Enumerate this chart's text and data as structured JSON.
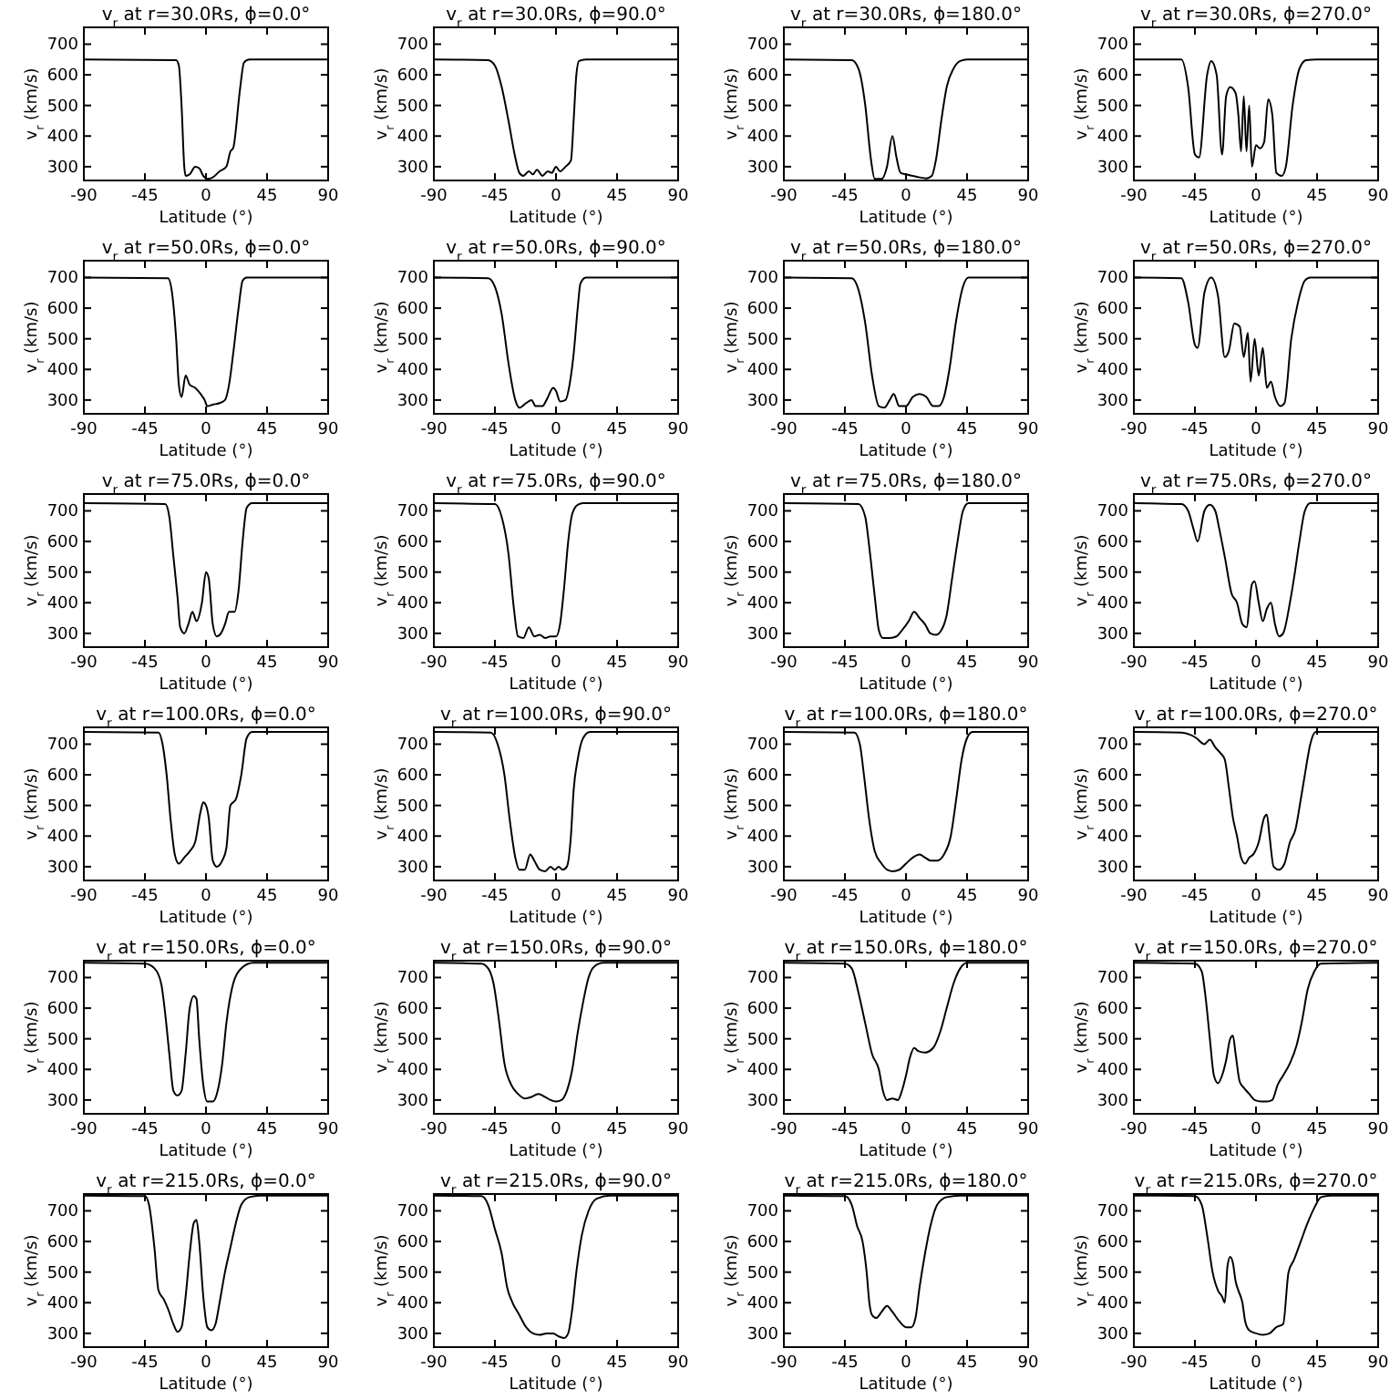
{
  "chart_data": [
    {
      "type": "line",
      "title": "v$_{r}$ at r=30.0Rs, ϕ=0.0°",
      "xlabel": "Latitude (°)",
      "ylabel": "v$_{r}$ (km/s)",
      "color": "#000000",
      "xlim": [
        -90,
        90
      ],
      "xticks": [
        -90,
        -45,
        0,
        45,
        90
      ],
      "ylim": [
        255,
        755
      ],
      "yticks": [
        300,
        400,
        500,
        600,
        700
      ],
      "x": [
        -90,
        -22,
        -20,
        -18,
        -16,
        -15,
        -12,
        -8,
        -5,
        -2,
        1,
        5,
        10,
        15,
        18,
        20,
        25,
        28,
        32,
        90
      ],
      "values": [
        650,
        648,
        630,
        500,
        300,
        270,
        275,
        300,
        295,
        270,
        260,
        265,
        285,
        300,
        350,
        360,
        550,
        640,
        650,
        650
      ]
    },
    {
      "type": "line",
      "title": "v$_{r}$ at r=30.0Rs, ϕ=90.0°",
      "xlabel": "Latitude (°)",
      "ylabel": "v$_{r}$ (km/s)",
      "color": "#000000",
      "xlim": [
        -90,
        90
      ],
      "xticks": [
        -90,
        -45,
        0,
        45,
        90
      ],
      "ylim": [
        255,
        755
      ],
      "yticks": [
        300,
        400,
        500,
        600,
        700
      ],
      "x": [
        -90,
        -50,
        -45,
        -40,
        -35,
        -30,
        -27,
        -24,
        -20,
        -17,
        -14,
        -10,
        -6,
        -3,
        0,
        3,
        7,
        11,
        13,
        15,
        17,
        22,
        90
      ],
      "values": [
        650,
        648,
        630,
        560,
        450,
        330,
        280,
        270,
        285,
        275,
        290,
        270,
        285,
        280,
        300,
        285,
        300,
        320,
        450,
        600,
        645,
        650,
        650
      ]
    },
    {
      "type": "line",
      "title": "v$_{r}$ at r=30.0Rs, ϕ=180.0°",
      "xlabel": "Latitude (°)",
      "ylabel": "v$_{r}$ (km/s)",
      "color": "#000000",
      "xlim": [
        -90,
        90
      ],
      "xticks": [
        -90,
        -45,
        0,
        45,
        90
      ],
      "ylim": [
        255,
        755
      ],
      "yticks": [
        300,
        400,
        500,
        600,
        700
      ],
      "x": [
        -90,
        -40,
        -35,
        -30,
        -26,
        -23,
        -18,
        -14,
        -10,
        -7,
        -4,
        0,
        5,
        10,
        15,
        19,
        22,
        26,
        30,
        35,
        40,
        45,
        90
      ],
      "values": [
        650,
        648,
        620,
        500,
        330,
        260,
        260,
        300,
        400,
        330,
        280,
        275,
        270,
        265,
        262,
        270,
        320,
        450,
        560,
        620,
        645,
        650,
        650
      ]
    },
    {
      "type": "line",
      "title": "v$_{r}$ at r=30.0Rs, ϕ=270.0°",
      "xlabel": "Latitude (°)",
      "ylabel": "v$_{r}$ (km/s)",
      "color": "#000000",
      "xlim": [
        -90,
        90
      ],
      "xticks": [
        -90,
        -45,
        0,
        45,
        90
      ],
      "ylim": [
        255,
        755
      ],
      "yticks": [
        300,
        400,
        500,
        600,
        700
      ],
      "x": [
        -90,
        -55,
        -50,
        -45,
        -42,
        -36,
        -33,
        -29,
        -25,
        -22,
        -19,
        -15,
        -13,
        -11,
        -9,
        -7,
        -5,
        -3,
        0,
        3,
        6,
        9,
        12,
        15,
        19,
        22,
        27,
        32,
        37,
        45,
        90
      ],
      "values": [
        650,
        650,
        560,
        340,
        330,
        600,
        645,
        600,
        340,
        530,
        560,
        540,
        470,
        350,
        530,
        350,
        500,
        300,
        370,
        360,
        380,
        520,
        470,
        280,
        270,
        300,
        500,
        620,
        648,
        650,
        650
      ]
    },
    {
      "type": "line",
      "title": "v$_{r}$ at r=50.0Rs, ϕ=0.0°",
      "xlabel": "Latitude (°)",
      "ylabel": "v$_{r}$ (km/s)",
      "color": "#000000",
      "xlim": [
        -90,
        90
      ],
      "xticks": [
        -90,
        -45,
        0,
        45,
        90
      ],
      "ylim": [
        255,
        755
      ],
      "yticks": [
        300,
        400,
        500,
        600,
        700
      ],
      "x": [
        -90,
        -28,
        -25,
        -22,
        -20,
        -18,
        -15,
        -12,
        -8,
        -4,
        -1,
        1,
        5,
        10,
        14,
        17,
        20,
        24,
        27,
        30,
        90
      ],
      "values": [
        700,
        698,
        650,
        500,
        350,
        310,
        380,
        350,
        340,
        320,
        300,
        280,
        285,
        290,
        300,
        350,
        450,
        600,
        690,
        700,
        700
      ]
    },
    {
      "type": "line",
      "title": "v$_{r}$ at r=50.0Rs, ϕ=90.0°",
      "xlabel": "Latitude (°)",
      "ylabel": "v$_{r}$ (km/s)",
      "color": "#000000",
      "xlim": [
        -90,
        90
      ],
      "xticks": [
        -90,
        -45,
        0,
        45,
        90
      ],
      "ylim": [
        255,
        755
      ],
      "yticks": [
        300,
        400,
        500,
        600,
        700
      ],
      "x": [
        -90,
        -50,
        -45,
        -40,
        -35,
        -30,
        -27,
        -22,
        -18,
        -15,
        -10,
        -7,
        -2,
        0,
        3,
        7,
        10,
        13,
        16,
        18,
        22,
        90
      ],
      "values": [
        700,
        698,
        670,
        580,
        420,
        300,
        275,
        290,
        300,
        280,
        280,
        300,
        340,
        330,
        295,
        300,
        350,
        450,
        600,
        680,
        700,
        700
      ]
    },
    {
      "type": "line",
      "title": "v$_{r}$ at r=50.0Rs, ϕ=180.0°",
      "xlabel": "Latitude (°)",
      "ylabel": "v$_{r}$ (km/s)",
      "color": "#000000",
      "xlim": [
        -90,
        90
      ],
      "xticks": [
        -90,
        -45,
        0,
        45,
        90
      ],
      "ylim": [
        255,
        755
      ],
      "yticks": [
        300,
        400,
        500,
        600,
        700
      ],
      "x": [
        -90,
        -40,
        -35,
        -30,
        -25,
        -20,
        -16,
        -12,
        -9,
        -5,
        0,
        5,
        10,
        15,
        20,
        24,
        28,
        32,
        37,
        42,
        46,
        90
      ],
      "values": [
        700,
        698,
        660,
        550,
        380,
        280,
        275,
        300,
        320,
        280,
        280,
        310,
        320,
        310,
        280,
        280,
        310,
        400,
        560,
        670,
        700,
        700
      ]
    },
    {
      "type": "line",
      "title": "v$_{r}$ at r=50.0Rs, ϕ=270.0°",
      "xlabel": "Latitude (°)",
      "ylabel": "v$_{r}$ (km/s)",
      "color": "#000000",
      "xlim": [
        -90,
        90
      ],
      "xticks": [
        -90,
        -45,
        0,
        45,
        90
      ],
      "ylim": [
        255,
        755
      ],
      "yticks": [
        300,
        400,
        500,
        600,
        700
      ],
      "x": [
        -90,
        -55,
        -50,
        -45,
        -43,
        -38,
        -33,
        -28,
        -23,
        -20,
        -16,
        -12,
        -9,
        -6,
        -4,
        -1,
        2,
        5,
        8,
        11,
        14,
        18,
        21,
        26,
        31,
        36,
        40,
        90
      ],
      "values": [
        700,
        698,
        620,
        480,
        470,
        650,
        700,
        640,
        440,
        460,
        550,
        540,
        440,
        520,
        360,
        500,
        380,
        470,
        340,
        360,
        310,
        280,
        290,
        500,
        620,
        690,
        700,
        700
      ]
    },
    {
      "type": "line",
      "title": "v$_{r}$ at r=75.0Rs, ϕ=0.0°",
      "xlabel": "Latitude (°)",
      "ylabel": "v$_{r}$ (km/s)",
      "color": "#000000",
      "xlim": [
        -90,
        90
      ],
      "xticks": [
        -90,
        -45,
        0,
        45,
        90
      ],
      "ylim": [
        255,
        755
      ],
      "yticks": [
        300,
        400,
        500,
        600,
        700
      ],
      "x": [
        -90,
        -30,
        -27,
        -24,
        -21,
        -19,
        -16,
        -13,
        -10,
        -7,
        -3,
        0,
        2,
        5,
        8,
        11,
        14,
        17,
        21,
        24,
        27,
        30,
        34,
        90
      ],
      "values": [
        725,
        722,
        680,
        550,
        420,
        320,
        300,
        330,
        370,
        340,
        400,
        500,
        480,
        330,
        290,
        300,
        330,
        370,
        370,
        440,
        600,
        710,
        725,
        725
      ]
    },
    {
      "type": "line",
      "title": "v$_{r}$ at r=75.0Rs, ϕ=90.0°",
      "xlabel": "Latitude (°)",
      "ylabel": "v$_{r}$ (km/s)",
      "color": "#000000",
      "xlim": [
        -90,
        90
      ],
      "xticks": [
        -90,
        -45,
        0,
        45,
        90
      ],
      "ylim": [
        255,
        755
      ],
      "yticks": [
        300,
        400,
        500,
        600,
        700
      ],
      "x": [
        -90,
        -45,
        -40,
        -35,
        -31,
        -28,
        -24,
        -20,
        -16,
        -12,
        -8,
        -4,
        0,
        3,
        6,
        9,
        12,
        16,
        20,
        90
      ],
      "values": [
        725,
        722,
        680,
        560,
        380,
        290,
        285,
        320,
        290,
        295,
        285,
        290,
        290,
        330,
        450,
        600,
        690,
        720,
        725,
        725
      ]
    },
    {
      "type": "line",
      "title": "v$_{r}$ at r=75.0Rs, ϕ=180.0°",
      "xlabel": "Latitude (°)",
      "ylabel": "v$_{r}$ (km/s)",
      "color": "#000000",
      "xlim": [
        -90,
        90
      ],
      "xticks": [
        -90,
        -45,
        0,
        45,
        90
      ],
      "ylim": [
        255,
        755
      ],
      "yticks": [
        300,
        400,
        500,
        600,
        700
      ],
      "x": [
        -90,
        -35,
        -30,
        -27,
        -23,
        -20,
        -17,
        -12,
        -7,
        -3,
        2,
        6,
        10,
        14,
        18,
        22,
        26,
        30,
        34,
        38,
        42,
        46,
        90
      ],
      "values": [
        725,
        722,
        680,
        580,
        420,
        310,
        285,
        285,
        290,
        310,
        340,
        370,
        350,
        330,
        300,
        295,
        310,
        360,
        480,
        600,
        700,
        725,
        725
      ]
    },
    {
      "type": "line",
      "title": "v$_{r}$ at r=75.0Rs, ϕ=270.0°",
      "xlabel": "Latitude (°)",
      "ylabel": "v$_{r}$ (km/s)",
      "color": "#000000",
      "xlim": [
        -90,
        90
      ],
      "xticks": [
        -90,
        -45,
        0,
        45,
        90
      ],
      "ylim": [
        255,
        755
      ],
      "yticks": [
        300,
        400,
        500,
        600,
        700
      ],
      "x": [
        -90,
        -55,
        -50,
        -46,
        -43,
        -38,
        -34,
        -30,
        -27,
        -23,
        -18,
        -14,
        -10,
        -7,
        -3,
        -1,
        2,
        5,
        8,
        11,
        14,
        17,
        20,
        25,
        28,
        32,
        36,
        40,
        90
      ],
      "values": [
        725,
        722,
        700,
        640,
        600,
        700,
        720,
        700,
        640,
        550,
        430,
        400,
        330,
        320,
        460,
        470,
        400,
        340,
        380,
        400,
        330,
        290,
        300,
        400,
        480,
        600,
        700,
        725,
        725
      ]
    },
    {
      "type": "line",
      "title": "v$_{r}$ at r=100.0Rs, ϕ=0.0°",
      "xlabel": "Latitude (°)",
      "ylabel": "v$_{r}$ (km/s)",
      "color": "#000000",
      "xlim": [
        -90,
        90
      ],
      "xticks": [
        -90,
        -45,
        0,
        45,
        90
      ],
      "ylim": [
        255,
        755
      ],
      "yticks": [
        300,
        400,
        500,
        600,
        700
      ],
      "x": [
        -90,
        -35,
        -32,
        -29,
        -26,
        -23,
        -20,
        -16,
        -12,
        -8,
        -4,
        -2,
        0,
        2,
        5,
        8,
        12,
        15,
        18,
        22,
        26,
        30,
        34,
        90
      ],
      "values": [
        740,
        738,
        700,
        600,
        450,
        340,
        310,
        330,
        350,
        380,
        480,
        510,
        500,
        460,
        320,
        300,
        320,
        360,
        500,
        520,
        600,
        720,
        740,
        740
      ]
    },
    {
      "type": "line",
      "title": "v$_{r}$ at r=100.0Rs, ϕ=90.0°",
      "xlabel": "Latitude (°)",
      "ylabel": "v$_{r}$ (km/s)",
      "color": "#000000",
      "xlim": [
        -90,
        90
      ],
      "xticks": [
        -90,
        -45,
        0,
        45,
        90
      ],
      "ylim": [
        255,
        755
      ],
      "yticks": [
        300,
        400,
        500,
        600,
        700
      ],
      "x": [
        -90,
        -48,
        -43,
        -38,
        -34,
        -30,
        -27,
        -23,
        -19,
        -16,
        -12,
        -8,
        -4,
        -1,
        2,
        5,
        8,
        11,
        13,
        16,
        20,
        25,
        90
      ],
      "values": [
        740,
        738,
        700,
        600,
        450,
        330,
        290,
        290,
        340,
        320,
        290,
        285,
        300,
        290,
        300,
        290,
        300,
        400,
        550,
        650,
        720,
        740,
        740
      ]
    },
    {
      "type": "line",
      "title": "v$_{r}$ at r=100.0Rs, ϕ=180.0°",
      "xlabel": "Latitude (°)",
      "ylabel": "v$_{r}$ (km/s)",
      "color": "#000000",
      "xlim": [
        -90,
        90
      ],
      "xticks": [
        -90,
        -45,
        0,
        45,
        90
      ],
      "ylim": [
        255,
        755
      ],
      "yticks": [
        300,
        400,
        500,
        600,
        700
      ],
      "x": [
        -90,
        -38,
        -34,
        -31,
        -27,
        -23,
        -18,
        -14,
        -10,
        -5,
        0,
        5,
        10,
        14,
        18,
        23,
        28,
        33,
        37,
        41,
        45,
        49,
        90
      ],
      "values": [
        740,
        738,
        700,
        600,
        450,
        350,
        310,
        290,
        285,
        290,
        310,
        330,
        340,
        330,
        320,
        320,
        340,
        400,
        520,
        650,
        720,
        740,
        740
      ]
    },
    {
      "type": "line",
      "title": "v$_{r}$ at r=100.0Rs, ϕ=270.0°",
      "xlabel": "Latitude (°)",
      "ylabel": "v$_{r}$ (km/s)",
      "color": "#000000",
      "xlim": [
        -90,
        90
      ],
      "xticks": [
        -90,
        -45,
        0,
        45,
        90
      ],
      "ylim": [
        255,
        755
      ],
      "yticks": [
        300,
        400,
        500,
        600,
        700
      ],
      "x": [
        -90,
        -55,
        -48,
        -44,
        -38,
        -34,
        -30,
        -26,
        -23,
        -20,
        -17,
        -14,
        -11,
        -8,
        -5,
        -2,
        2,
        6,
        8,
        10,
        13,
        17,
        21,
        25,
        29,
        33,
        36,
        40,
        44,
        90
      ],
      "values": [
        740,
        738,
        730,
        720,
        700,
        715,
        690,
        670,
        650,
        560,
        460,
        400,
        330,
        310,
        330,
        340,
        380,
        460,
        470,
        400,
        300,
        290,
        310,
        380,
        420,
        520,
        600,
        700,
        740,
        740
      ]
    },
    {
      "type": "line",
      "title": "v$_{r}$ at r=150.0Rs, ϕ=0.0°",
      "xlabel": "Latitude (°)",
      "ylabel": "v$_{r}$ (km/s)",
      "color": "#000000",
      "xlim": [
        -90,
        90
      ],
      "xticks": [
        -90,
        -45,
        0,
        45,
        90
      ],
      "ylim": [
        255,
        755
      ],
      "yticks": [
        300,
        400,
        500,
        600,
        700
      ],
      "x": [
        -90,
        -45,
        -38,
        -33,
        -30,
        -27,
        -24,
        -21,
        -18,
        -15,
        -12,
        -9,
        -7,
        -5,
        -2,
        1,
        5,
        8,
        12,
        15,
        20,
        26,
        35,
        90
      ],
      "values": [
        748,
        745,
        730,
        680,
        580,
        450,
        330,
        315,
        330,
        450,
        600,
        640,
        630,
        500,
        350,
        295,
        295,
        320,
        420,
        550,
        680,
        730,
        748,
        748
      ]
    },
    {
      "type": "line",
      "title": "v$_{r}$ at r=150.0Rs, ϕ=90.0°",
      "xlabel": "Latitude (°)",
      "ylabel": "v$_{r}$ (km/s)",
      "color": "#000000",
      "xlim": [
        -90,
        90
      ],
      "xticks": [
        -90,
        -45,
        0,
        45,
        90
      ],
      "ylim": [
        255,
        755
      ],
      "yticks": [
        300,
        400,
        500,
        600,
        700
      ],
      "x": [
        -90,
        -55,
        -50,
        -46,
        -42,
        -38,
        -33,
        -28,
        -23,
        -18,
        -13,
        -8,
        -4,
        0,
        4,
        8,
        12,
        16,
        20,
        24,
        28,
        35,
        90
      ],
      "values": [
        748,
        745,
        730,
        680,
        560,
        420,
        350,
        320,
        305,
        310,
        320,
        310,
        300,
        295,
        300,
        330,
        400,
        520,
        620,
        700,
        735,
        748,
        748
      ]
    },
    {
      "type": "line",
      "title": "v$_{r}$ at r=150.0Rs, ϕ=180.0°",
      "xlabel": "Latitude (°)",
      "ylabel": "v$_{r}$ (km/s)",
      "color": "#000000",
      "xlim": [
        -90,
        90
      ],
      "xticks": [
        -90,
        -45,
        0,
        45,
        90
      ],
      "ylim": [
        255,
        755
      ],
      "yticks": [
        300,
        400,
        500,
        600,
        700
      ],
      "x": [
        -90,
        -45,
        -40,
        -35,
        -30,
        -25,
        -20,
        -17,
        -14,
        -10,
        -6,
        -3,
        0,
        3,
        6,
        9,
        14,
        20,
        25,
        30,
        35,
        40,
        45,
        90
      ],
      "values": [
        748,
        745,
        730,
        650,
        550,
        450,
        400,
        330,
        300,
        305,
        300,
        330,
        380,
        440,
        470,
        460,
        455,
        470,
        520,
        600,
        680,
        730,
        748,
        748
      ]
    },
    {
      "type": "line",
      "title": "v$_{r}$ at r=150.0Rs, ϕ=270.0°",
      "xlabel": "Latitude (°)",
      "ylabel": "v$_{r}$ (km/s)",
      "color": "#000000",
      "xlim": [
        -90,
        90
      ],
      "xticks": [
        -90,
        -45,
        0,
        45,
        90
      ],
      "ylim": [
        255,
        755
      ],
      "yticks": [
        300,
        400,
        500,
        600,
        700
      ],
      "x": [
        -90,
        -45,
        -40,
        -37,
        -34,
        -31,
        -28,
        -25,
        -22,
        -19,
        -17,
        -15,
        -12,
        -9,
        -5,
        -1,
        4,
        8,
        12,
        16,
        20,
        25,
        30,
        34,
        38,
        43,
        48,
        90
      ],
      "values": [
        748,
        745,
        720,
        630,
        500,
        380,
        355,
        380,
        430,
        500,
        510,
        450,
        360,
        340,
        320,
        300,
        295,
        295,
        300,
        350,
        380,
        420,
        480,
        560,
        660,
        720,
        745,
        748
      ]
    },
    {
      "type": "line",
      "title": "v$_{r}$ at r=215.0Rs, ϕ=0.0°",
      "xlabel": "Latitude (°)",
      "ylabel": "v$_{r}$ (km/s)",
      "color": "#000000",
      "xlim": [
        -90,
        90
      ],
      "xticks": [
        -90,
        -45,
        0,
        45,
        90
      ],
      "ylim": [
        255,
        755
      ],
      "yticks": [
        300,
        400,
        500,
        600,
        700
      ],
      "x": [
        -90,
        -45,
        -42,
        -38,
        -35,
        -31,
        -28,
        -24,
        -21,
        -18,
        -15,
        -12,
        -9,
        -7,
        -5,
        -2,
        1,
        4,
        7,
        10,
        14,
        18,
        22,
        26,
        32,
        40,
        90
      ],
      "values": [
        750,
        748,
        720,
        580,
        440,
        410,
        380,
        330,
        305,
        320,
        420,
        560,
        660,
        670,
        600,
        420,
        320,
        310,
        330,
        400,
        500,
        580,
        660,
        720,
        745,
        750,
        750
      ]
    },
    {
      "type": "line",
      "title": "v$_{r}$ at r=215.0Rs, ϕ=90.0°",
      "xlabel": "Latitude (°)",
      "ylabel": "v$_{r}$ (km/s)",
      "color": "#000000",
      "xlim": [
        -90,
        90
      ],
      "xticks": [
        -90,
        -45,
        0,
        45,
        90
      ],
      "ylim": [
        255,
        755
      ],
      "yticks": [
        300,
        400,
        500,
        600,
        700
      ],
      "x": [
        -90,
        -55,
        -50,
        -45,
        -40,
        -36,
        -32,
        -27,
        -22,
        -17,
        -12,
        -7,
        -2,
        2,
        6,
        9,
        12,
        15,
        19,
        24,
        30,
        40,
        90
      ],
      "values": [
        750,
        748,
        720,
        640,
        560,
        450,
        400,
        360,
        320,
        300,
        295,
        300,
        300,
        290,
        285,
        300,
        380,
        500,
        620,
        700,
        740,
        750,
        750
      ]
    },
    {
      "type": "line",
      "title": "v$_{r}$ at r=215.0Rs, ϕ=180.0°",
      "xlabel": "Latitude (°)",
      "ylabel": "v$_{r}$ (km/s)",
      "color": "#000000",
      "xlim": [
        -90,
        90
      ],
      "xticks": [
        -90,
        -45,
        0,
        45,
        90
      ],
      "ylim": [
        255,
        755
      ],
      "yticks": [
        300,
        400,
        500,
        600,
        700
      ],
      "x": [
        -90,
        -45,
        -40,
        -36,
        -32,
        -29,
        -27,
        -25,
        -22,
        -18,
        -14,
        -10,
        -5,
        0,
        4,
        7,
        10,
        14,
        18,
        23,
        30,
        40,
        90
      ],
      "values": [
        750,
        748,
        720,
        650,
        600,
        500,
        400,
        360,
        350,
        370,
        390,
        370,
        340,
        320,
        320,
        350,
        450,
        560,
        650,
        720,
        745,
        750,
        750
      ]
    },
    {
      "type": "line",
      "title": "v$_{r}$ at r=215.0Rs, ϕ=270.0°",
      "xlabel": "Latitude (°)",
      "ylabel": "v$_{r}$ (km/s)",
      "color": "#000000",
      "xlim": [
        -90,
        90
      ],
      "xticks": [
        -90,
        -45,
        0,
        45,
        90
      ],
      "ylim": [
        255,
        755
      ],
      "yticks": [
        300,
        400,
        500,
        600,
        700
      ],
      "x": [
        -90,
        -45,
        -40,
        -36,
        -32,
        -28,
        -25,
        -23,
        -21,
        -19,
        -17,
        -15,
        -13,
        -10,
        -8,
        -5,
        0,
        5,
        10,
        15,
        20,
        24,
        28,
        33,
        38,
        43,
        48,
        55,
        90
      ],
      "values": [
        750,
        748,
        720,
        620,
        500,
        440,
        420,
        400,
        520,
        550,
        530,
        470,
        440,
        400,
        340,
        310,
        300,
        295,
        300,
        320,
        330,
        500,
        540,
        600,
        660,
        710,
        745,
        750,
        750
      ]
    }
  ]
}
